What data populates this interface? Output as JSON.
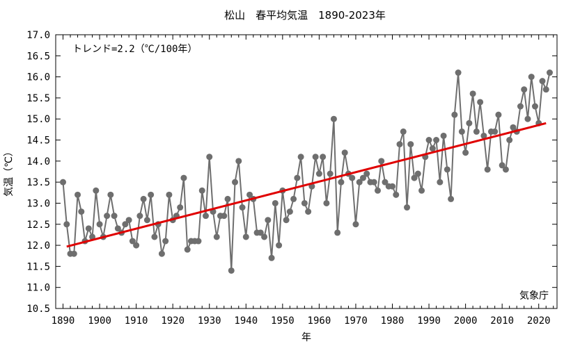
{
  "chart_data": {
    "type": "line",
    "title": "松山　春平均気温　1890-2023年",
    "xlabel": "年",
    "ylabel": "気温（℃）",
    "trend_label": "トレンド=2.2（℃/100年）",
    "source": "気象庁",
    "xlim": [
      1888,
      2025
    ],
    "ylim": [
      10.5,
      17.0
    ],
    "x_ticks": [
      1890,
      1900,
      1910,
      1920,
      1930,
      1940,
      1950,
      1960,
      1970,
      1980,
      1990,
      2000,
      2010,
      2020
    ],
    "y_ticks": [
      "10.5",
      "11.0",
      "11.5",
      "12.0",
      "12.5",
      "13.0",
      "13.5",
      "14.0",
      "14.5",
      "15.0",
      "15.5",
      "16.0",
      "16.5",
      "17.0"
    ],
    "grid": false,
    "colors": {
      "series": "#6e6e6e",
      "trend": "#e00000",
      "axis": "#000000"
    },
    "series": [
      {
        "x": [
          1890,
          1891,
          1892,
          1893,
          1894,
          1895,
          1896,
          1897,
          1898,
          1899,
          1900,
          1901,
          1902,
          1903,
          1904,
          1905,
          1906,
          1907,
          1908,
          1909,
          1910,
          1911,
          1912,
          1913,
          1914,
          1915,
          1916,
          1917,
          1918,
          1919,
          1920,
          1921,
          1922,
          1923,
          1924,
          1925,
          1926,
          1927,
          1928,
          1929,
          1930,
          1931,
          1932,
          1933,
          1934,
          1935,
          1936,
          1937,
          1938,
          1939,
          1940,
          1941,
          1942,
          1943,
          1944,
          1945,
          1946,
          1947,
          1948,
          1949,
          1950,
          1951,
          1952,
          1953,
          1954,
          1955,
          1956,
          1957,
          1958,
          1959,
          1960,
          1961,
          1962,
          1963,
          1964,
          1965,
          1966,
          1967,
          1968,
          1969,
          1970,
          1971,
          1972,
          1973,
          1974,
          1975,
          1976,
          1977,
          1978,
          1979,
          1980,
          1981,
          1982,
          1983,
          1984,
          1985,
          1986,
          1987,
          1988,
          1989,
          1990,
          1991,
          1992,
          1993,
          1994,
          1995,
          1996,
          1997,
          1998,
          1999,
          2000,
          2001,
          2002,
          2003,
          2004,
          2005,
          2006,
          2007,
          2008,
          2009,
          2010,
          2011,
          2012,
          2013,
          2014,
          2015,
          2016,
          2017,
          2018,
          2019,
          2020,
          2021,
          2022,
          2023
        ],
        "values": [
          13.5,
          12.5,
          11.8,
          11.8,
          13.2,
          12.8,
          12.1,
          12.4,
          12.2,
          13.3,
          12.5,
          12.2,
          12.7,
          13.2,
          12.7,
          12.4,
          12.3,
          12.5,
          12.6,
          12.1,
          12.0,
          12.7,
          13.1,
          12.6,
          13.2,
          12.2,
          12.5,
          11.8,
          12.1,
          13.2,
          12.6,
          12.7,
          12.9,
          13.6,
          11.9,
          12.1,
          12.1,
          12.1,
          13.3,
          12.7,
          14.1,
          12.8,
          12.2,
          12.7,
          12.7,
          13.1,
          11.4,
          13.5,
          14.0,
          12.9,
          12.2,
          13.2,
          13.1,
          12.3,
          12.3,
          12.2,
          12.6,
          11.7,
          13.0,
          12.0,
          13.3,
          12.6,
          12.8,
          13.1,
          13.6,
          14.1,
          13.0,
          12.8,
          13.4,
          14.1,
          13.7,
          14.1,
          13.0,
          13.7,
          15.0,
          12.3,
          13.5,
          14.2,
          13.7,
          13.6,
          12.5,
          13.5,
          13.6,
          13.7,
          13.5,
          13.5,
          13.3,
          14.0,
          13.5,
          13.4,
          13.4,
          13.2,
          14.4,
          14.7,
          12.9,
          14.4,
          13.6,
          13.7,
          13.3,
          14.1,
          14.5,
          14.3,
          14.5,
          13.5,
          14.6,
          13.8,
          13.1,
          15.1,
          16.1,
          14.7,
          14.2,
          14.9,
          15.6,
          14.7,
          15.4,
          14.6,
          13.8,
          14.7,
          14.7,
          15.1,
          13.9,
          13.8,
          14.5,
          14.8,
          14.7,
          15.3,
          15.7,
          15.0,
          16.0,
          15.3,
          14.9,
          15.9,
          15.7,
          16.1
        ]
      }
    ],
    "trend": {
      "x": [
        1891,
        2022
      ],
      "values": [
        11.97,
        14.9
      ]
    }
  }
}
